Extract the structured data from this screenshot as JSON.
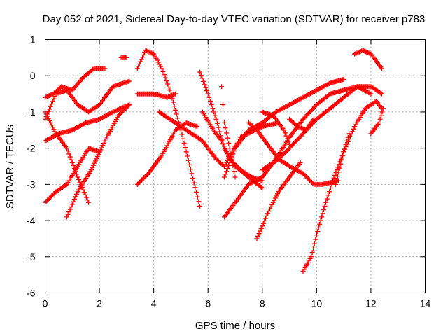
{
  "chart_data": {
    "type": "scatter",
    "title": "Day 052 of 2021, Sidereal Day-to-day VTEC variation (SDTVAR) for receiver p783",
    "xlabel": "GPS time / hours",
    "ylabel": "SDTVAR / TECUs",
    "xlim": [
      0,
      14
    ],
    "ylim": [
      -6,
      1
    ],
    "xticks": [
      "0",
      "2",
      "4",
      "6",
      "8",
      "10",
      "12",
      "14"
    ],
    "yticks": [
      "1",
      "0",
      "-1",
      "-2",
      "-3",
      "-4",
      "-5",
      "-6"
    ],
    "grid": true,
    "marker": "+",
    "color": "#ff0000",
    "series": [
      {
        "x": [
          0.0,
          0.3,
          0.6,
          1.0,
          1.4,
          1.8,
          2.2
        ],
        "y": [
          -0.6,
          -0.5,
          -0.3,
          -0.4,
          -0.05,
          0.2,
          0.2
        ]
      },
      {
        "x": [
          0.0,
          0.4,
          0.8,
          1.2,
          1.6,
          2.0,
          2.5,
          3.1
        ],
        "y": [
          -1.2,
          -0.5,
          -0.4,
          -0.8,
          -1.0,
          -0.8,
          -0.3,
          -0.15
        ]
      },
      {
        "x": [
          0.0,
          0.5,
          1.0,
          1.5,
          2.0,
          2.5,
          3.1
        ],
        "y": [
          -1.8,
          -1.6,
          -1.5,
          -1.3,
          -1.2,
          -1.0,
          -0.8
        ]
      },
      {
        "x": [
          0.0,
          0.4,
          0.8,
          1.2,
          1.6,
          2.0
        ],
        "y": [
          -3.5,
          -3.2,
          -3.0,
          -2.5,
          -2.0,
          -2.1
        ]
      },
      {
        "x": [
          0.0,
          0.4,
          0.8,
          1.2,
          1.6
        ],
        "y": [
          -1.0,
          -1.6,
          -2.0,
          -2.8,
          -3.5
        ]
      },
      {
        "x": [
          0.8,
          1.2,
          1.7,
          2.2,
          2.7,
          3.1
        ],
        "y": [
          -3.9,
          -3.2,
          -2.6,
          -1.8,
          -1.1,
          -0.8
        ]
      },
      {
        "x": [
          2.8,
          3.0
        ],
        "y": [
          0.5,
          0.5
        ]
      },
      {
        "x": [
          3.4,
          3.7,
          4.0,
          4.3,
          4.6,
          5.0,
          5.4,
          5.7
        ],
        "y": [
          0.2,
          0.7,
          0.6,
          0.2,
          -0.4,
          -1.5,
          -2.7,
          -3.6
        ]
      },
      {
        "x": [
          3.4,
          4.0,
          4.5,
          4.8
        ],
        "y": [
          -0.5,
          -0.5,
          -0.6,
          -0.5
        ]
      },
      {
        "x": [
          3.4,
          3.8,
          4.3,
          4.8,
          5.2,
          5.6
        ],
        "y": [
          -3.0,
          -2.7,
          -2.2,
          -1.5,
          -1.3,
          -1.4
        ]
      },
      {
        "x": [
          4.2,
          5.0,
          5.8,
          6.3,
          6.6,
          7.2,
          8.0,
          8.6
        ],
        "y": [
          -1.0,
          -1.4,
          -1.8,
          -2.3,
          -2.5,
          -1.7,
          -1.4,
          -1.3
        ]
      },
      {
        "x": [
          5.7,
          6.0,
          6.3,
          6.6,
          7.0,
          7.5,
          8.0
        ],
        "y": [
          0.1,
          -0.5,
          -1.2,
          -2.0,
          -2.5,
          -2.8,
          -3.1
        ]
      },
      {
        "x": [
          5.8,
          6.2,
          6.5,
          6.8,
          7.2,
          7.6,
          8.0
        ],
        "y": [
          -1.0,
          -1.5,
          -1.8,
          -2.3,
          -2.6,
          -2.8,
          -2.9
        ]
      },
      {
        "x": [
          6.5,
          6.6,
          6.8,
          7.0
        ],
        "y": [
          -0.3,
          -1.3,
          -2.0,
          -2.8
        ]
      },
      {
        "x": [
          6.6,
          7.0,
          7.5,
          8.0,
          8.5,
          9.0,
          9.5,
          10.0,
          10.5,
          11.0
        ],
        "y": [
          -2.8,
          -2.0,
          -1.5,
          -1.3,
          -1.0,
          -0.8,
          -0.6,
          -0.4,
          -0.2,
          -0.1
        ]
      },
      {
        "x": [
          6.6,
          7.0,
          7.5,
          8.0,
          8.5,
          9.0,
          9.5,
          10.0,
          10.5,
          11.0,
          11.5,
          12.0
        ],
        "y": [
          -3.9,
          -3.5,
          -3.0,
          -2.8,
          -2.3,
          -1.7,
          -1.2,
          -0.8,
          -0.5,
          -0.4,
          -0.3,
          -0.5
        ]
      },
      {
        "x": [
          7.8,
          8.2,
          8.6,
          9.0,
          9.4
        ],
        "y": [
          -4.5,
          -3.8,
          -3.2,
          -2.8,
          -2.4
        ]
      },
      {
        "x": [
          8.0,
          8.6,
          9.0,
          9.5,
          10.0,
          10.5,
          11.0,
          11.5,
          12.0,
          12.4
        ],
        "y": [
          -2.6,
          -2.3,
          -2.0,
          -1.6,
          -1.2,
          -0.9,
          -0.6,
          -0.3,
          -0.3,
          -0.5
        ]
      },
      {
        "x": [
          7.5,
          7.8,
          8.2,
          8.6,
          9.0,
          9.5,
          9.9,
          10.2,
          10.8
        ],
        "y": [
          -1.3,
          -1.5,
          -1.9,
          -2.3,
          -2.5,
          -2.7,
          -3.0,
          -3.0,
          -2.9
        ]
      },
      {
        "x": [
          8.0,
          8.4,
          8.8,
          9.0
        ],
        "y": [
          -1.0,
          -1.1,
          -1.5,
          -1.9
        ]
      },
      {
        "x": [
          9.5,
          9.8,
          10.0,
          10.3,
          10.6,
          10.9,
          11.2
        ],
        "y": [
          -5.4,
          -5.0,
          -4.4,
          -3.6,
          -2.9,
          -2.3,
          -1.6
        ]
      },
      {
        "x": [
          9.0,
          9.3,
          9.6,
          9.9
        ],
        "y": [
          -1.2,
          -1.4,
          -1.5,
          -1.2
        ]
      },
      {
        "x": [
          10.7,
          11.0,
          11.4,
          11.8,
          12.2,
          12.4
        ],
        "y": [
          -3.0,
          -2.1,
          -1.4,
          -0.9,
          -0.7,
          -0.9
        ]
      },
      {
        "x": [
          11.4,
          11.7,
          12.0,
          12.2,
          12.4
        ],
        "y": [
          0.6,
          0.7,
          0.6,
          0.4,
          0.2
        ]
      },
      {
        "x": [
          12.0,
          12.3,
          12.45
        ],
        "y": [
          -1.6,
          -1.3,
          -0.9
        ]
      }
    ]
  }
}
